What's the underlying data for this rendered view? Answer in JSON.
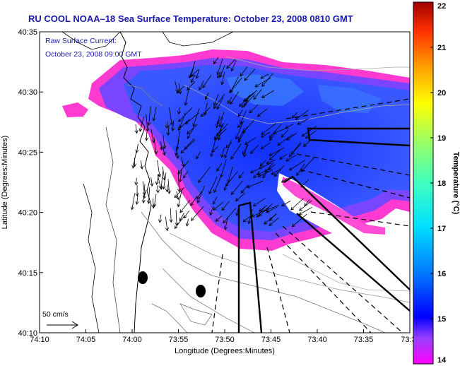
{
  "title": "RU COOL  NOAA–18  Sea Surface Temperature:  October 23, 2008 0810 GMT",
  "overlay": {
    "line1": "Raw Surface Current:",
    "line2": "October 23, 2008 09:00 GMT"
  },
  "axes": {
    "xlabel": "Longitude (Degrees:Minutes)",
    "ylabel": "Latitude (Degrees:Minutes)",
    "xticks": [
      "74:10",
      "74:05",
      "74:00",
      "73:55",
      "73:50",
      "73:45",
      "73:40",
      "73:35",
      "73:3"
    ],
    "yticks": [
      "40:35",
      "40:30",
      "40:25",
      "40:20",
      "40:15",
      "40:10"
    ]
  },
  "scale_label": "50 cm/s",
  "colorbar": {
    "title": "Temperature (°C)",
    "ticks": [
      "22",
      "21",
      "20",
      "19",
      "18",
      "17",
      "16",
      "15",
      "14"
    ],
    "min": 14,
    "max": 22
  },
  "colors": {
    "title_blue": "#1a1aa8",
    "sst_warm": "#1e3cff",
    "sst_cool": "#ff33cc",
    "sst_mid": "#6a5cff"
  }
}
